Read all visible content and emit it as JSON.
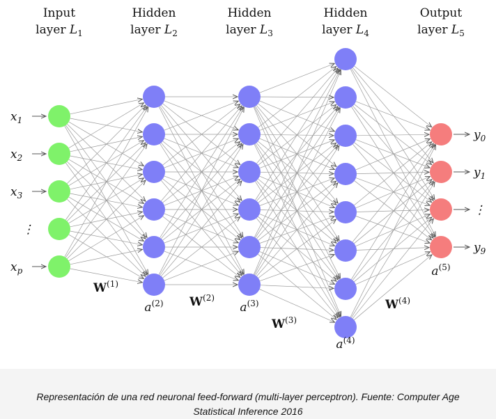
{
  "diagram": {
    "colors": {
      "input": "#7ff26a",
      "hidden": "#7f7ff7",
      "output": "#f57d7d",
      "edge": "#9a9a9a",
      "arrow": "#555555"
    },
    "layers": [
      {
        "name": "input",
        "title_line1": "Input",
        "title_line2": "layer",
        "title_var": "L",
        "title_sub": "1",
        "nodes": 5,
        "color_key": "input"
      },
      {
        "name": "hidden1",
        "title_line1": "Hidden",
        "title_line2": "layer",
        "title_var": "L",
        "title_sub": "2",
        "nodes": 6,
        "color_key": "hidden"
      },
      {
        "name": "hidden2",
        "title_line1": "Hidden",
        "title_line2": "layer",
        "title_var": "L",
        "title_sub": "3",
        "nodes": 6,
        "color_key": "hidden"
      },
      {
        "name": "hidden3",
        "title_line1": "Hidden",
        "title_line2": "layer",
        "title_var": "L",
        "title_sub": "4",
        "nodes": 8,
        "color_key": "hidden"
      },
      {
        "name": "output",
        "title_line1": "Output",
        "title_line2": "layer",
        "title_var": "L",
        "title_sub": "5",
        "nodes": 4,
        "color_key": "output"
      }
    ],
    "inputs": [
      {
        "base": "x",
        "sub": "1"
      },
      {
        "base": "x",
        "sub": "2"
      },
      {
        "base": "x",
        "sub": "3"
      },
      {
        "base": "⋮",
        "sub": ""
      },
      {
        "base": "x",
        "sub": "p"
      }
    ],
    "outputs": [
      {
        "base": "y",
        "sub": "0"
      },
      {
        "base": "y",
        "sub": "1"
      },
      {
        "base": "⋮",
        "sub": ""
      },
      {
        "base": "y",
        "sub": "9"
      }
    ],
    "activations": [
      {
        "base": "a",
        "sup": "(2)"
      },
      {
        "base": "a",
        "sup": "(3)"
      },
      {
        "base": "a",
        "sup": "(4)"
      },
      {
        "base": "a",
        "sup": "(5)"
      }
    ],
    "weights": [
      {
        "base": "W",
        "sup": "(1)"
      },
      {
        "base": "W",
        "sup": "(2)"
      },
      {
        "base": "W",
        "sup": "(3)"
      },
      {
        "base": "W",
        "sup": "(4)"
      }
    ]
  },
  "caption": {
    "line1": "Representación de una red neuronal feed-forward (multi-layer perceptron). Fuente: Computer Age",
    "line2": "Statistical Inference 2016"
  }
}
